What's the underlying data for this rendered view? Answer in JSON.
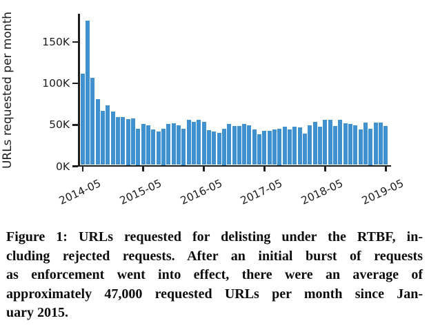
{
  "figure": {
    "caption_lines": [
      "Figure 1: URLs requested for delisting under the RTBF, in-",
      "cluding rejected requests. After an initial burst of requests",
      "as enforcement went into effect, there were an average of",
      "approximately 47,000 requested URLs per month since Jan-",
      "uary 2015."
    ]
  },
  "chart_data": {
    "type": "bar",
    "title": "",
    "xlabel": "",
    "ylabel": "URLs requested per month",
    "unit": "thousands of URLs per month",
    "grid": false,
    "legend": null,
    "ylim": [
      0,
      182
    ],
    "y_ticks": [
      0,
      50,
      100,
      150
    ],
    "y_tick_labels": [
      "0K",
      "50K",
      "100K",
      "150K"
    ],
    "x_tick_labels": [
      "2014-05",
      "2015-05",
      "2016-05",
      "2017-05",
      "2018-05",
      "2019-05"
    ],
    "categories": [
      "2014-05",
      "2014-06",
      "2014-07",
      "2014-08",
      "2014-09",
      "2014-10",
      "2014-11",
      "2014-12",
      "2015-01",
      "2015-02",
      "2015-03",
      "2015-04",
      "2015-05",
      "2015-06",
      "2015-07",
      "2015-08",
      "2015-09",
      "2015-10",
      "2015-11",
      "2015-12",
      "2016-01",
      "2016-02",
      "2016-03",
      "2016-04",
      "2016-05",
      "2016-06",
      "2016-07",
      "2016-08",
      "2016-09",
      "2016-10",
      "2016-11",
      "2016-12",
      "2017-01",
      "2017-02",
      "2017-03",
      "2017-04",
      "2017-05",
      "2017-06",
      "2017-07",
      "2017-08",
      "2017-09",
      "2017-10",
      "2017-11",
      "2017-12",
      "2018-01",
      "2018-02",
      "2018-03",
      "2018-04",
      "2018-05",
      "2018-06",
      "2018-07",
      "2018-08",
      "2018-09",
      "2018-10",
      "2018-11",
      "2018-12",
      "2019-01",
      "2019-02",
      "2019-03",
      "2019-04",
      "2019-05"
    ],
    "values": [
      110,
      174,
      105,
      79,
      65,
      72,
      64,
      58,
      58,
      55,
      56,
      44,
      49,
      48,
      43,
      40,
      44,
      49,
      50,
      48,
      44,
      54,
      52,
      54,
      52,
      42,
      40,
      39,
      44,
      49,
      47,
      47,
      49,
      48,
      43,
      37,
      41,
      41,
      43,
      44,
      46,
      43,
      46,
      45,
      38,
      48,
      52,
      46,
      54,
      54,
      47,
      54,
      50,
      49,
      48,
      43,
      51,
      44,
      51,
      51,
      47
    ],
    "bar_color": "#4191cf",
    "axis_color": "#1c1c1c"
  }
}
